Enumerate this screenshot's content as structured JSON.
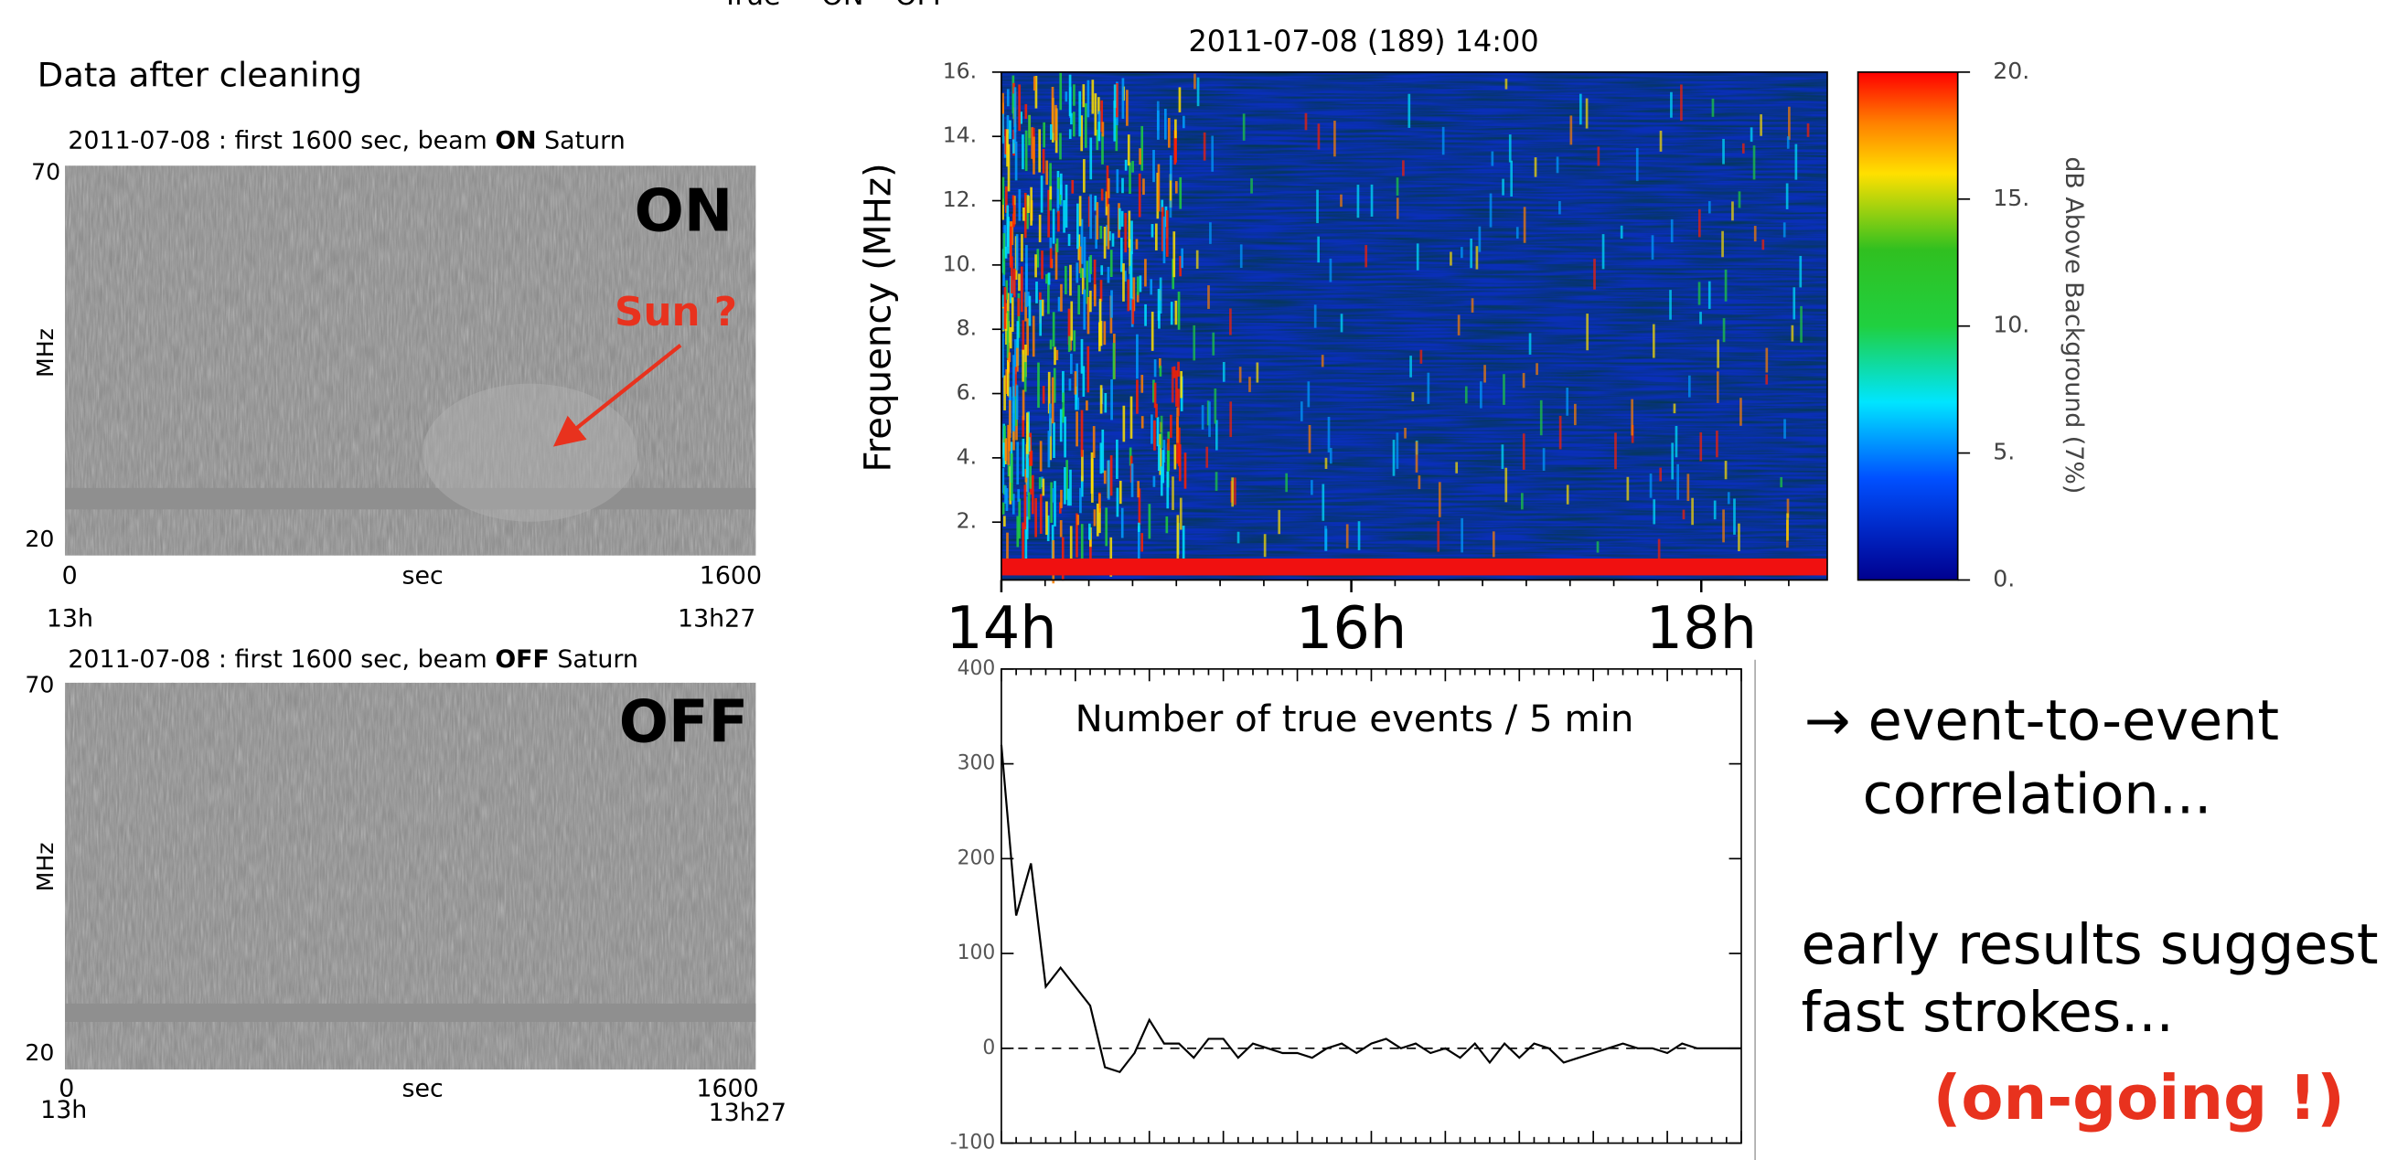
{
  "header": {
    "top_note": "True = ON – OFF",
    "section_title": "Data after cleaning"
  },
  "panels": [
    {
      "title_date": "2011-07-08 : first 1600 sec, beam ",
      "title_beam": "ON",
      "title_target": " Saturn",
      "y_top": "70",
      "y_bottom": "20",
      "y_label": "MHz",
      "x_start": "0",
      "x_label": "sec",
      "x_end": "1600",
      "time_start": "13h",
      "time_end": "13h27",
      "big_label": "ON",
      "annotation": "Sun ?"
    },
    {
      "title_date": "2011-07-08 : first 1600 sec, beam ",
      "title_beam": "OFF",
      "title_target": "  Saturn",
      "y_top": "70",
      "y_bottom": "20",
      "y_label": "MHz",
      "x_start": "0",
      "x_label": "sec",
      "x_end": "1600",
      "time_start": "13h",
      "time_end": "13h27",
      "big_label": "OFF"
    }
  ],
  "chart_data": [
    {
      "type": "heatmap",
      "title": "2011-07-08 (189) 14:00",
      "y_label": "Frequency (MHz)",
      "ylim": [
        0.2,
        16
      ],
      "yticks": [
        {
          "value": 2,
          "label": "2."
        },
        {
          "value": 4,
          "label": "4."
        },
        {
          "value": 6,
          "label": "6."
        },
        {
          "value": 8,
          "label": "8."
        },
        {
          "value": 10,
          "label": "10."
        },
        {
          "value": 12,
          "label": "12."
        },
        {
          "value": 14,
          "label": "14."
        },
        {
          "value": 16,
          "label": "16."
        }
      ],
      "xlim": [
        14,
        18.72
      ],
      "xticks": [
        {
          "value": 14,
          "label": "14h"
        },
        {
          "value": 16,
          "label": "16h"
        },
        {
          "value": 18,
          "label": "18h"
        }
      ],
      "colorbar_label": "dB Above Background (7%)",
      "clim": [
        0,
        20
      ],
      "cticks": [
        {
          "value": 0,
          "label": "0."
        },
        {
          "value": 5,
          "label": "5."
        },
        {
          "value": 10,
          "label": "10."
        },
        {
          "value": 15,
          "label": "15."
        },
        {
          "value": 20,
          "label": "20."
        }
      ]
    },
    {
      "type": "line",
      "title": "Number of true events / 5 min",
      "color": "#000000",
      "values": [
        320,
        140,
        195,
        65,
        85,
        65,
        45,
        -20,
        -25,
        -5,
        30,
        5,
        5,
        -10,
        10,
        10,
        -10,
        5,
        0,
        -5,
        -5,
        -10,
        0,
        5,
        -5,
        5,
        10,
        0,
        5,
        -5,
        0,
        -10,
        5,
        -15,
        5,
        -10,
        5,
        0,
        -15,
        -10,
        -5,
        0,
        5,
        0,
        0,
        -5,
        5,
        0,
        0,
        0,
        0
      ],
      "ylim": [
        -100,
        400
      ],
      "yticks": [
        -100,
        0,
        100,
        200,
        300,
        400
      ],
      "zero_line": true
    }
  ],
  "notes": [
    "→ event-to-event",
    "correlation...",
    "early results suggest",
    "fast strokes...",
    "(on-going !)"
  ]
}
